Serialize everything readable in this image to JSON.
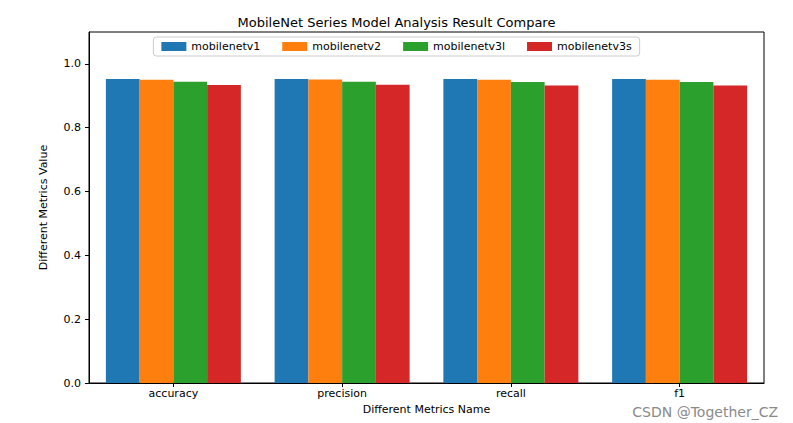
{
  "chart_data": {
    "type": "bar",
    "title": "MobileNet Series Model Analysis Result Compare",
    "x_label": "Different Metrics Name",
    "y_label": "Different Metrics Value",
    "categories": [
      "accuracy",
      "precision",
      "recall",
      "f1"
    ],
    "series": [
      {
        "name": "mobilenetv1",
        "color": "#1f77b4",
        "values": [
          0.953,
          0.953,
          0.953,
          0.953
        ]
      },
      {
        "name": "mobilenetv2",
        "color": "#ff7f0e",
        "values": [
          0.95,
          0.951,
          0.95,
          0.95
        ]
      },
      {
        "name": "mobilenetv3l",
        "color": "#2ca02c",
        "values": [
          0.944,
          0.944,
          0.943,
          0.943
        ]
      },
      {
        "name": "mobilenetv3s",
        "color": "#d62728",
        "values": [
          0.934,
          0.935,
          0.932,
          0.932
        ]
      }
    ],
    "ylim": [
      0,
      1.1
    ],
    "yticks": [
      {
        "value": 0,
        "label": "0.0"
      },
      0.2,
      0.4,
      0.6,
      0.8,
      {
        "value": 1,
        "label": "1.0"
      }
    ],
    "grid": false,
    "legend": "top",
    "annotations": [
      "CSDN @Together_CZ"
    ]
  }
}
